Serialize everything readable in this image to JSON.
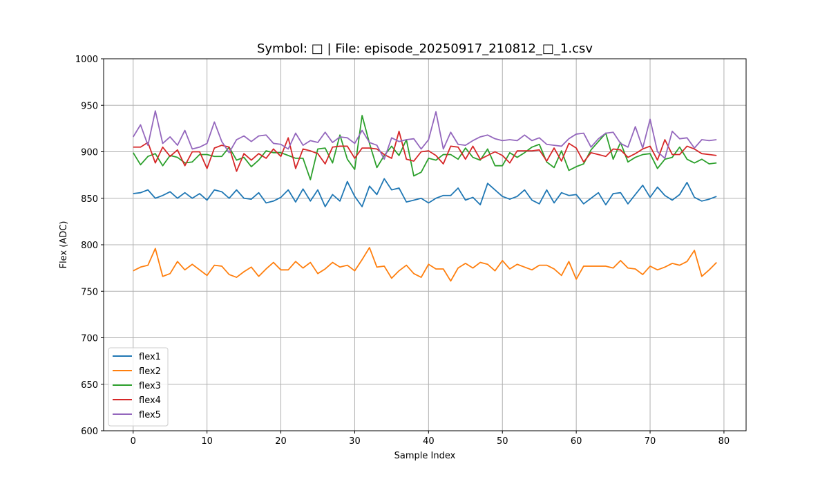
{
  "chart_data": {
    "type": "line",
    "title": "Symbol: □ | File: episode_20250917_210812_□_1.csv",
    "xlabel": "Sample Index",
    "ylabel": "Flex (ADC)",
    "xlim": [
      -4,
      83
    ],
    "ylim": [
      600,
      1000
    ],
    "xticks": [
      0,
      10,
      20,
      30,
      40,
      50,
      60,
      70,
      80
    ],
    "yticks": [
      600,
      650,
      700,
      750,
      800,
      850,
      900,
      950,
      1000
    ],
    "grid": true,
    "legend_position": "lower-left",
    "x": [
      0,
      1,
      2,
      3,
      4,
      5,
      6,
      7,
      8,
      9,
      10,
      11,
      12,
      13,
      14,
      15,
      16,
      17,
      18,
      19,
      20,
      21,
      22,
      23,
      24,
      25,
      26,
      27,
      28,
      29,
      30,
      31,
      32,
      33,
      34,
      35,
      36,
      37,
      38,
      39,
      40,
      41,
      42,
      43,
      44,
      45,
      46,
      47,
      48,
      49,
      50,
      51,
      52,
      53,
      54,
      55,
      56,
      57,
      58,
      59,
      60,
      61,
      62,
      63,
      64,
      65,
      66,
      67,
      68,
      69,
      70,
      71,
      72,
      73,
      74,
      75,
      76,
      77,
      78,
      79
    ],
    "series": [
      {
        "name": "flex1",
        "color": "#1f77b4",
        "values": [
          855,
          856,
          859,
          850,
          853,
          857,
          850,
          856,
          850,
          855,
          848,
          859,
          857,
          850,
          859,
          850,
          849,
          856,
          845,
          847,
          851,
          859,
          846,
          860,
          847,
          859,
          841,
          854,
          847,
          868,
          852,
          841,
          863,
          854,
          871,
          859,
          861,
          846,
          848,
          850,
          845,
          850,
          853,
          853,
          861,
          848,
          851,
          843,
          866,
          859,
          852,
          849,
          852,
          859,
          848,
          844,
          859,
          845,
          856,
          853,
          854,
          844,
          850,
          856,
          843,
          855,
          856,
          844,
          854,
          864,
          851,
          862,
          853,
          848,
          854,
          867,
          851,
          847,
          849,
          852
        ]
      },
      {
        "name": "flex2",
        "color": "#ff7f0e",
        "values": [
          772,
          776,
          778,
          796,
          766,
          769,
          782,
          773,
          779,
          773,
          767,
          778,
          777,
          768,
          765,
          771,
          776,
          766,
          774,
          781,
          773,
          773,
          782,
          775,
          781,
          769,
          774,
          781,
          776,
          778,
          772,
          784,
          797,
          776,
          777,
          764,
          772,
          778,
          769,
          765,
          779,
          774,
          774,
          761,
          775,
          780,
          775,
          781,
          779,
          772,
          783,
          774,
          779,
          776,
          773,
          778,
          778,
          774,
          767,
          782,
          763,
          777,
          777,
          777,
          777,
          775,
          783,
          775,
          774,
          768,
          777,
          773,
          776,
          780,
          778,
          782,
          794,
          766,
          773,
          781
        ]
      },
      {
        "name": "flex3",
        "color": "#2ca02c",
        "values": [
          899,
          886,
          895,
          898,
          885,
          896,
          894,
          888,
          889,
          897,
          897,
          895,
          895,
          905,
          891,
          894,
          884,
          891,
          901,
          899,
          899,
          896,
          893,
          893,
          870,
          903,
          904,
          888,
          918,
          892,
          881,
          939,
          909,
          883,
          896,
          906,
          896,
          913,
          874,
          878,
          893,
          891,
          897,
          897,
          892,
          904,
          894,
          891,
          903,
          885,
          885,
          899,
          894,
          899,
          905,
          908,
          889,
          883,
          901,
          880,
          884,
          887,
          902,
          911,
          920,
          892,
          910,
          889,
          894,
          897,
          898,
          882,
          892,
          894,
          905,
          892,
          888,
          892,
          887,
          888
        ]
      },
      {
        "name": "flex4",
        "color": "#d62728",
        "values": [
          905,
          905,
          910,
          888,
          905,
          895,
          902,
          885,
          900,
          900,
          882,
          904,
          907,
          905,
          879,
          898,
          891,
          898,
          893,
          903,
          895,
          915,
          882,
          903,
          901,
          898,
          887,
          905,
          906,
          906,
          893,
          904,
          904,
          903,
          897,
          893,
          922,
          892,
          890,
          900,
          901,
          896,
          887,
          906,
          905,
          892,
          906,
          892,
          896,
          900,
          896,
          888,
          901,
          901,
          901,
          902,
          890,
          904,
          890,
          909,
          904,
          889,
          899,
          897,
          895,
          903,
          902,
          894,
          898,
          903,
          906,
          891,
          913,
          897,
          897,
          906,
          903,
          898,
          897,
          896
        ]
      },
      {
        "name": "flex5",
        "color": "#9467bd",
        "values": [
          916,
          929,
          907,
          944,
          909,
          916,
          907,
          923,
          903,
          905,
          909,
          932,
          911,
          899,
          913,
          917,
          911,
          917,
          918,
          909,
          908,
          903,
          920,
          907,
          912,
          910,
          921,
          910,
          916,
          915,
          909,
          923,
          910,
          907,
          892,
          915,
          911,
          913,
          914,
          903,
          913,
          943,
          903,
          921,
          908,
          907,
          912,
          916,
          918,
          914,
          912,
          913,
          912,
          918,
          912,
          915,
          908,
          907,
          906,
          914,
          919,
          920,
          905,
          914,
          920,
          921,
          909,
          905,
          927,
          904,
          935,
          900,
          893,
          922,
          914,
          915,
          904,
          913,
          912,
          913
        ]
      }
    ]
  }
}
